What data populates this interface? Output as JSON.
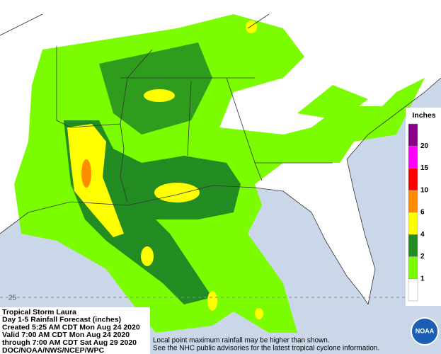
{
  "legend": {
    "title": "Inches",
    "labels": [
      "20",
      "15",
      "10",
      "6",
      "4",
      "2",
      "1"
    ],
    "colors": [
      "#8b008b",
      "#ff00ff",
      "#ff0000",
      "#ff8c00",
      "#ffff00",
      "#228b22",
      "#7cfc00",
      "#ffffff"
    ]
  },
  "info": {
    "lines": [
      "Tropical Storm Laura",
      "Day 1-5 Rainfall Forecast (inches)",
      "Created 5:25 AM CDT Mon Aug 24 2020",
      "Valid 7:00 AM CDT Mon Aug 24 2020",
      "through 7:00 AM CDT Sat Aug 29 2020",
      "DOC/NOAA/NWS/NCEP/WPC"
    ]
  },
  "notes": [
    "Local point maximum rainfall may be higher than shown.",
    "See the NHC public advisories for the latest tropical cyclone information."
  ],
  "map": {
    "latitude_label": "25"
  },
  "logo": "NOAA"
}
